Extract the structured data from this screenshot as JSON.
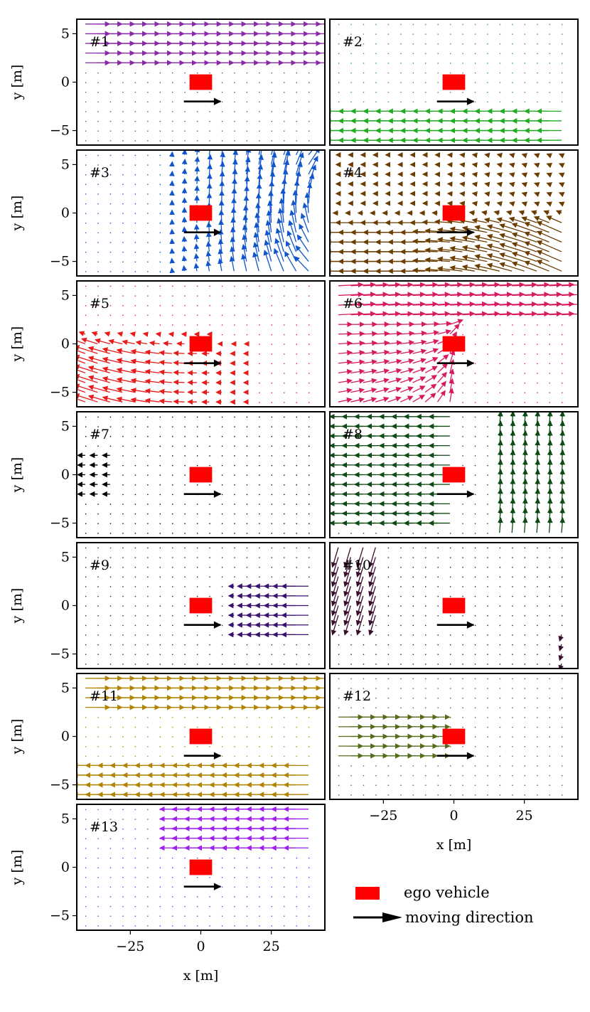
{
  "chart_data": {
    "type": "quiver",
    "grid": false,
    "x_ticks": [
      "−25",
      "0",
      "25"
    ],
    "y_ticks": [
      "−5",
      "0",
      "5"
    ],
    "xlabel": "x [m]",
    "ylabel": "y [m]",
    "xlim": [
      -44,
      44
    ],
    "ylim": [
      -6.5,
      6.5
    ],
    "ego_vehicle": {
      "x": 0,
      "y": 0,
      "length": 8,
      "width": 1.6,
      "color": "#ff0000"
    },
    "moving_direction": {
      "x_start": -6,
      "x_end": 7,
      "y": -2
    },
    "legend": {
      "location": "lower-right",
      "ego_label": "ego vehicle",
      "direction_label": "moving direction"
    },
    "panels": [
      {
        "label": "#1",
        "color": "#8a2ba8",
        "flows": [
          {
            "region": "upper band y=2 to 6",
            "direction": "+x"
          }
        ]
      },
      {
        "label": "#2",
        "color": "#22aa22",
        "flows": [
          {
            "region": "lower band y=-6 to -3, x=-40 to 40",
            "direction": "-x"
          }
        ]
      },
      {
        "label": "#3",
        "color": "#1155cc",
        "flows": [
          {
            "region": "right half",
            "direction": "curving upward into +x at top, downward on right"
          }
        ]
      },
      {
        "label": "#4",
        "color": "#6b3d00",
        "flows": [
          {
            "region": "lower half",
            "direction": "-x, fanning upward to the right"
          }
        ]
      },
      {
        "label": "#5",
        "color": "#e81a1a",
        "flows": [
          {
            "region": "lower-left",
            "direction": "-x, fanning upward to the left"
          }
        ]
      },
      {
        "label": "#6",
        "color": "#d81b60",
        "flows": [
          {
            "region": "upper band y=3 to 6",
            "direction": "+x"
          },
          {
            "region": "left side",
            "direction": "converging upward"
          }
        ]
      },
      {
        "label": "#7",
        "color": "#000000",
        "flows": [
          {
            "region": "far left near y=0",
            "direction": "-x, weak"
          }
        ]
      },
      {
        "label": "#8",
        "color": "#0d4a14",
        "flows": [
          {
            "region": "left",
            "direction": "-x"
          },
          {
            "region": "right",
            "direction": "upward"
          }
        ]
      },
      {
        "label": "#9",
        "color": "#3a1070",
        "flows": [
          {
            "region": "right y=-3 to 2",
            "direction": "-x"
          }
        ]
      },
      {
        "label": "#10",
        "color": "#3a0d2e",
        "flows": [
          {
            "region": "upper left",
            "direction": "swirl downward-left"
          }
        ]
      },
      {
        "label": "#11",
        "color": "#b08400",
        "flows": [
          {
            "region": "upper band",
            "direction": "+x"
          },
          {
            "region": "lower band",
            "direction": "-x"
          }
        ]
      },
      {
        "label": "#12",
        "color": "#556b1b",
        "flows": [
          {
            "region": "left y=-2 to 2",
            "direction": "+x"
          }
        ]
      },
      {
        "label": "#13",
        "color": "#a020f0",
        "flows": [
          {
            "region": "upper center-right",
            "direction": "-x"
          }
        ]
      }
    ]
  }
}
